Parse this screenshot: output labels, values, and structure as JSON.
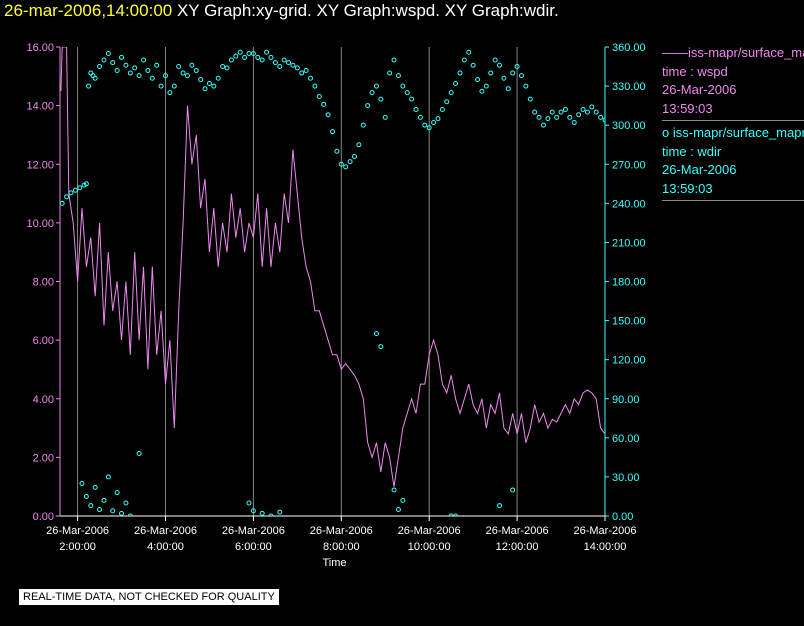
{
  "header": {
    "timestamp": "26-mar-2006,14:00:00",
    "titles": "XY Graph:xy-grid.  XY Graph:wspd.  XY Graph:wdir."
  },
  "colors": {
    "wspd": "#ee88ee",
    "wdir": "#33ffff",
    "grid": "#888888",
    "axis": "#ffffff"
  },
  "legend": {
    "wspd": {
      "symbol": "——",
      "name": "iss-mapr/surface_mapr",
      "axis": "time : wspd",
      "date": "26-Mar-2006",
      "time": "13:59:03"
    },
    "wdir": {
      "symbol": "o",
      "name": "iss-mapr/surface_mapr",
      "axis": "time : wdir",
      "date": "26-Mar-2006",
      "time": "13:59:03"
    }
  },
  "qc_note": "REAL-TIME DATA, NOT CHECKED FOR QUALITY",
  "chart_data": {
    "type": "line",
    "xlabel": "Time",
    "x_range_hours": [
      1.6,
      14.0
    ],
    "x_ticks": [
      {
        "h": 2,
        "date": "26-Mar-2006",
        "time": "2:00:00"
      },
      {
        "h": 4,
        "date": "26-Mar-2006",
        "time": "4:00:00"
      },
      {
        "h": 6,
        "date": "26-Mar-2006",
        "time": "6:00:00"
      },
      {
        "h": 8,
        "date": "26-Mar-2006",
        "time": "8:00:00"
      },
      {
        "h": 10,
        "date": "26-Mar-2006",
        "time": "10:00:00"
      },
      {
        "h": 12,
        "date": "26-Mar-2006",
        "time": "12:00:00"
      },
      {
        "h": 14,
        "date": "26-Mar-2006",
        "time": "14:00:00"
      }
    ],
    "y_left": {
      "range": [
        0,
        16
      ],
      "ticks": [
        "0.00",
        "2.00",
        "4.00",
        "6.00",
        "8.00",
        "10.00",
        "12.00",
        "14.00",
        "16.00"
      ]
    },
    "y_right": {
      "range": [
        0,
        360
      ],
      "ticks": [
        "0.00",
        "30.00",
        "60.00",
        "90.00",
        "120.00",
        "150.00",
        "180.00",
        "210.00",
        "240.00",
        "270.00",
        "300.00",
        "330.00",
        "360.00"
      ]
    },
    "series": [
      {
        "name": "wspd",
        "axis": "left",
        "style": "line",
        "points": [
          [
            1.62,
            14.5
          ],
          [
            1.65,
            16.0
          ],
          [
            1.75,
            16.0
          ],
          [
            1.8,
            11.0
          ],
          [
            1.9,
            10.0
          ],
          [
            2.0,
            8.0
          ],
          [
            2.1,
            10.5
          ],
          [
            2.2,
            8.5
          ],
          [
            2.3,
            9.5
          ],
          [
            2.4,
            7.5
          ],
          [
            2.5,
            10.0
          ],
          [
            2.6,
            6.5
          ],
          [
            2.7,
            9.0
          ],
          [
            2.8,
            7.0
          ],
          [
            2.9,
            8.0
          ],
          [
            3.0,
            6.0
          ],
          [
            3.1,
            8.0
          ],
          [
            3.2,
            5.5
          ],
          [
            3.3,
            9.0
          ],
          [
            3.4,
            6.0
          ],
          [
            3.5,
            8.5
          ],
          [
            3.6,
            5.0
          ],
          [
            3.7,
            8.5
          ],
          [
            3.8,
            5.5
          ],
          [
            3.9,
            7.0
          ],
          [
            4.0,
            4.5
          ],
          [
            4.1,
            6.0
          ],
          [
            4.2,
            3.0
          ],
          [
            4.3,
            7.0
          ],
          [
            4.4,
            10.0
          ],
          [
            4.5,
            14.0
          ],
          [
            4.6,
            12.0
          ],
          [
            4.7,
            13.0
          ],
          [
            4.8,
            10.5
          ],
          [
            4.9,
            11.5
          ],
          [
            5.0,
            9.0
          ],
          [
            5.1,
            10.5
          ],
          [
            5.2,
            8.5
          ],
          [
            5.3,
            10.0
          ],
          [
            5.4,
            9.0
          ],
          [
            5.5,
            11.0
          ],
          [
            5.6,
            9.5
          ],
          [
            5.7,
            10.5
          ],
          [
            5.8,
            9.0
          ],
          [
            5.9,
            10.0
          ],
          [
            6.0,
            9.5
          ],
          [
            6.1,
            11.0
          ],
          [
            6.2,
            8.5
          ],
          [
            6.3,
            10.5
          ],
          [
            6.4,
            8.5
          ],
          [
            6.5,
            10.0
          ],
          [
            6.6,
            9.0
          ],
          [
            6.7,
            11.0
          ],
          [
            6.8,
            10.0
          ],
          [
            6.9,
            12.5
          ],
          [
            7.0,
            11.0
          ],
          [
            7.1,
            9.5
          ],
          [
            7.2,
            8.5
          ],
          [
            7.3,
            8.0
          ],
          [
            7.4,
            7.0
          ],
          [
            7.5,
            7.0
          ],
          [
            7.6,
            6.5
          ],
          [
            7.7,
            6.0
          ],
          [
            7.8,
            5.5
          ],
          [
            7.9,
            5.5
          ],
          [
            8.0,
            5.0
          ],
          [
            8.1,
            5.2
          ],
          [
            8.2,
            5.0
          ],
          [
            8.3,
            4.8
          ],
          [
            8.4,
            4.5
          ],
          [
            8.5,
            4.0
          ],
          [
            8.6,
            2.5
          ],
          [
            8.7,
            2.0
          ],
          [
            8.8,
            2.5
          ],
          [
            8.9,
            1.5
          ],
          [
            9.0,
            2.5
          ],
          [
            9.1,
            2.0
          ],
          [
            9.2,
            1.0
          ],
          [
            9.3,
            2.0
          ],
          [
            9.4,
            3.0
          ],
          [
            9.5,
            3.5
          ],
          [
            9.6,
            4.0
          ],
          [
            9.7,
            3.5
          ],
          [
            9.8,
            4.5
          ],
          [
            9.9,
            4.5
          ],
          [
            10.0,
            5.5
          ],
          [
            10.1,
            6.0
          ],
          [
            10.2,
            5.5
          ],
          [
            10.3,
            4.5
          ],
          [
            10.4,
            4.2
          ],
          [
            10.5,
            4.8
          ],
          [
            10.6,
            4.0
          ],
          [
            10.7,
            3.5
          ],
          [
            10.8,
            4.0
          ],
          [
            10.9,
            4.5
          ],
          [
            11.0,
            3.8
          ],
          [
            11.1,
            3.5
          ],
          [
            11.2,
            4.0
          ],
          [
            11.3,
            3.0
          ],
          [
            11.4,
            3.8
          ],
          [
            11.5,
            3.5
          ],
          [
            11.6,
            4.2
          ],
          [
            11.7,
            3.0
          ],
          [
            11.8,
            2.8
          ],
          [
            11.9,
            3.5
          ],
          [
            12.0,
            2.8
          ],
          [
            12.1,
            3.5
          ],
          [
            12.2,
            2.5
          ],
          [
            12.3,
            3.0
          ],
          [
            12.4,
            3.8
          ],
          [
            12.5,
            3.2
          ],
          [
            12.6,
            3.5
          ],
          [
            12.7,
            3.0
          ],
          [
            12.8,
            3.3
          ],
          [
            12.9,
            3.2
          ],
          [
            13.0,
            3.5
          ],
          [
            13.1,
            3.8
          ],
          [
            13.2,
            3.5
          ],
          [
            13.3,
            4.0
          ],
          [
            13.4,
            3.8
          ],
          [
            13.5,
            4.2
          ],
          [
            13.6,
            4.3
          ],
          [
            13.7,
            4.2
          ],
          [
            13.8,
            4.0
          ],
          [
            13.9,
            3.0
          ],
          [
            14.0,
            2.8
          ]
        ]
      },
      {
        "name": "wdir",
        "axis": "right",
        "style": "scatter",
        "points": [
          [
            1.65,
            240
          ],
          [
            1.75,
            245
          ],
          [
            1.85,
            248
          ],
          [
            1.95,
            250
          ],
          [
            2.05,
            252
          ],
          [
            2.15,
            254
          ],
          [
            2.2,
            255
          ],
          [
            2.25,
            330
          ],
          [
            2.3,
            340
          ],
          [
            2.35,
            338
          ],
          [
            2.4,
            336
          ],
          [
            2.5,
            345
          ],
          [
            2.6,
            350
          ],
          [
            2.7,
            355
          ],
          [
            2.8,
            348
          ],
          [
            2.9,
            342
          ],
          [
            3.0,
            352
          ],
          [
            3.1,
            346
          ],
          [
            3.2,
            340
          ],
          [
            3.3,
            344
          ],
          [
            3.4,
            338
          ],
          [
            3.5,
            350
          ],
          [
            3.6,
            342
          ],
          [
            3.7,
            336
          ],
          [
            3.8,
            346
          ],
          [
            3.9,
            330
          ],
          [
            4.0,
            338
          ],
          [
            4.1,
            325
          ],
          [
            4.2,
            330
          ],
          [
            4.3,
            345
          ],
          [
            4.4,
            340
          ],
          [
            4.5,
            338
          ],
          [
            4.6,
            346
          ],
          [
            4.7,
            342
          ],
          [
            4.8,
            335
          ],
          [
            4.9,
            328
          ],
          [
            5.0,
            332
          ],
          [
            5.1,
            330
          ],
          [
            5.2,
            336
          ],
          [
            5.3,
            345
          ],
          [
            5.4,
            344
          ],
          [
            5.5,
            350
          ],
          [
            5.6,
            353
          ],
          [
            5.7,
            356
          ],
          [
            5.8,
            352
          ],
          [
            5.9,
            355
          ],
          [
            6.0,
            355
          ],
          [
            6.1,
            352
          ],
          [
            6.2,
            350
          ],
          [
            6.3,
            356
          ],
          [
            6.4,
            352
          ],
          [
            6.5,
            348
          ],
          [
            6.6,
            345
          ],
          [
            6.7,
            350
          ],
          [
            6.8,
            348
          ],
          [
            6.9,
            346
          ],
          [
            7.0,
            344
          ],
          [
            7.1,
            340
          ],
          [
            7.2,
            342
          ],
          [
            7.3,
            336
          ],
          [
            7.4,
            330
          ],
          [
            7.5,
            322
          ],
          [
            7.6,
            316
          ],
          [
            7.7,
            308
          ],
          [
            7.8,
            295
          ],
          [
            7.9,
            280
          ],
          [
            8.0,
            270
          ],
          [
            8.1,
            268
          ],
          [
            8.2,
            272
          ],
          [
            8.3,
            276
          ],
          [
            8.4,
            285
          ],
          [
            8.5,
            300
          ],
          [
            8.6,
            315
          ],
          [
            8.7,
            325
          ],
          [
            8.8,
            330
          ],
          [
            8.9,
            320
          ],
          [
            9.0,
            306
          ],
          [
            9.1,
            340
          ],
          [
            9.2,
            350
          ],
          [
            9.3,
            338
          ],
          [
            9.4,
            330
          ],
          [
            9.5,
            325
          ],
          [
            9.6,
            320
          ],
          [
            9.7,
            312
          ],
          [
            9.8,
            306
          ],
          [
            9.9,
            300
          ],
          [
            10.0,
            298
          ],
          [
            10.1,
            302
          ],
          [
            10.2,
            305
          ],
          [
            10.3,
            312
          ],
          [
            10.4,
            318
          ],
          [
            10.5,
            325
          ],
          [
            10.6,
            332
          ],
          [
            10.7,
            340
          ],
          [
            10.8,
            350
          ],
          [
            10.9,
            356
          ],
          [
            11.0,
            346
          ],
          [
            11.1,
            335
          ],
          [
            11.2,
            326
          ],
          [
            11.3,
            330
          ],
          [
            11.4,
            340
          ],
          [
            11.5,
            350
          ],
          [
            11.6,
            346
          ],
          [
            11.7,
            336
          ],
          [
            11.8,
            328
          ],
          [
            11.9,
            340
          ],
          [
            12.0,
            345
          ],
          [
            12.1,
            338
          ],
          [
            12.2,
            330
          ],
          [
            12.3,
            320
          ],
          [
            12.4,
            310
          ],
          [
            12.5,
            306
          ],
          [
            12.6,
            300
          ],
          [
            12.7,
            305
          ],
          [
            12.8,
            310
          ],
          [
            12.9,
            306
          ],
          [
            13.0,
            310
          ],
          [
            13.1,
            312
          ],
          [
            13.2,
            306
          ],
          [
            13.3,
            302
          ],
          [
            13.4,
            308
          ],
          [
            13.5,
            312
          ],
          [
            13.6,
            310
          ],
          [
            13.7,
            314
          ],
          [
            13.8,
            310
          ],
          [
            13.9,
            306
          ],
          [
            14.0,
            304
          ],
          [
            2.1,
            25
          ],
          [
            2.2,
            15
          ],
          [
            2.3,
            8
          ],
          [
            2.4,
            22
          ],
          [
            2.5,
            5
          ],
          [
            2.6,
            12
          ],
          [
            2.7,
            30
          ],
          [
            2.8,
            4
          ],
          [
            2.9,
            18
          ],
          [
            3.0,
            2
          ],
          [
            3.1,
            10
          ],
          [
            3.2,
            0
          ],
          [
            3.4,
            48
          ],
          [
            5.9,
            10
          ],
          [
            6.0,
            4
          ],
          [
            6.2,
            2
          ],
          [
            6.4,
            0
          ],
          [
            6.6,
            3
          ],
          [
            8.8,
            140
          ],
          [
            8.9,
            130
          ],
          [
            9.2,
            20
          ],
          [
            9.3,
            5
          ],
          [
            9.4,
            12
          ],
          [
            10.5,
            0
          ],
          [
            10.6,
            0
          ],
          [
            11.6,
            8
          ],
          [
            11.9,
            20
          ]
        ]
      }
    ]
  }
}
